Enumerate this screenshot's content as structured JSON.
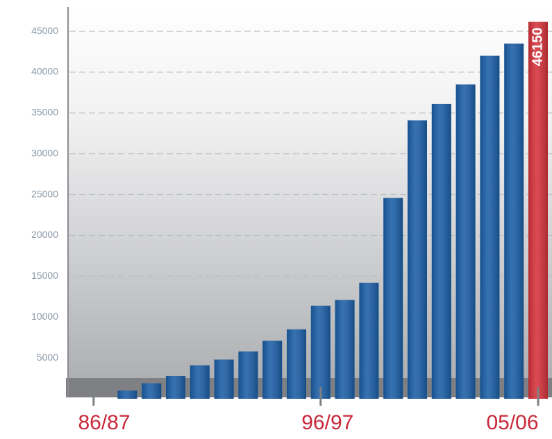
{
  "chart_data": {
    "type": "bar",
    "categories": [
      "86/87",
      null,
      null,
      null,
      null,
      null,
      null,
      null,
      null,
      null,
      "96/97",
      null,
      null,
      null,
      null,
      null,
      null,
      null,
      null,
      "05/06"
    ],
    "values": [
      null,
      null,
      1000,
      1900,
      2800,
      4100,
      4800,
      5800,
      7100,
      8500,
      11400,
      12100,
      14200,
      24600,
      34100,
      36100,
      38500,
      42000,
      43500,
      46150
    ],
    "value_labels": [
      null,
      null,
      null,
      null,
      null,
      null,
      null,
      null,
      null,
      null,
      null,
      null,
      null,
      null,
      null,
      null,
      null,
      null,
      null,
      "46150"
    ],
    "colors": [
      "#1b5ea6",
      "#1b5ea6",
      "#1b5ea6",
      "#1b5ea6",
      "#1b5ea6",
      "#1b5ea6",
      "#1b5ea6",
      "#1b5ea6",
      "#1b5ea6",
      "#1b5ea6",
      "#1b5ea6",
      "#1b5ea6",
      "#1b5ea6",
      "#1b5ea6",
      "#1b5ea6",
      "#1b5ea6",
      "#1b5ea6",
      "#1b5ea6",
      "#1b5ea6",
      "#d5323a"
    ],
    "ylim": [
      0,
      48000
    ],
    "yticks": [
      5000,
      10000,
      15000,
      20000,
      25000,
      30000,
      35000,
      40000,
      45000
    ],
    "grid": true
  }
}
